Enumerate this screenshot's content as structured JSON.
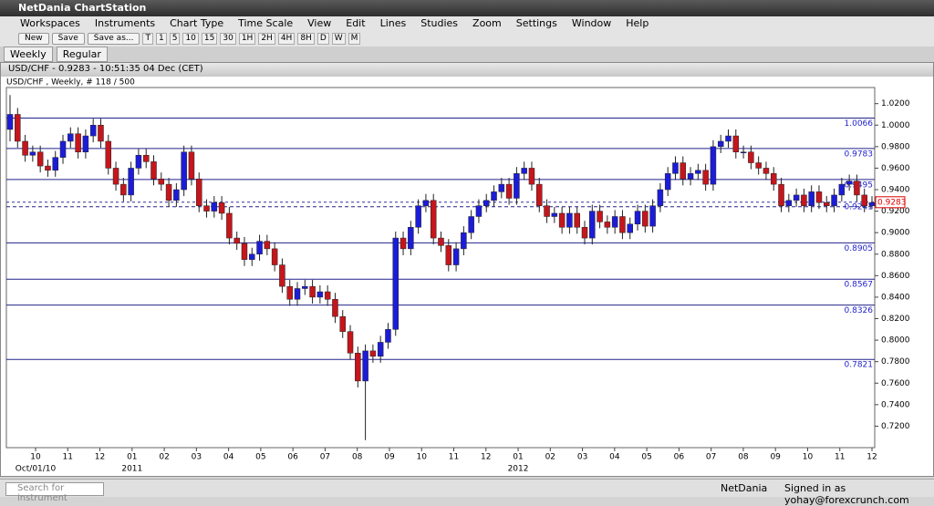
{
  "window": {
    "title": "NetDania ChartStation"
  },
  "menu": [
    "Workspaces",
    "Instruments",
    "Chart Type",
    "Time Scale",
    "View",
    "Edit",
    "Lines",
    "Studies",
    "Zoom",
    "Settings",
    "Window",
    "Help"
  ],
  "toolbar": {
    "buttons": [
      "New",
      "Save",
      "Save as..."
    ],
    "timeframes": [
      "T",
      "1",
      "5",
      "10",
      "15",
      "30",
      "1H",
      "2H",
      "4H",
      "8H",
      "D",
      "W",
      "M"
    ]
  },
  "tabs": [
    "Weekly",
    "Regular"
  ],
  "chart": {
    "type": "candlestick",
    "header": "USD/CHF - 0.9283 - 10:51:35  04 Dec (CET)",
    "label": "USD/CHF , Weekly, # 118 / 500",
    "up_color": "#1c1cd8",
    "down_color": "#c4161c",
    "ylim": [
      0.7,
      1.035
    ],
    "yticks": [
      {
        "value": 1.02,
        "label": "1.0200"
      },
      {
        "value": 1.0,
        "label": "1.0000"
      },
      {
        "value": 0.98,
        "label": "0.9800"
      },
      {
        "value": 0.96,
        "label": "0.9600"
      },
      {
        "value": 0.94,
        "label": "0.9400"
      },
      {
        "value": 0.92,
        "label": "0.9200"
      },
      {
        "value": 0.9,
        "label": "0.9000"
      },
      {
        "value": 0.88,
        "label": "0.8800"
      },
      {
        "value": 0.86,
        "label": "0.8600"
      },
      {
        "value": 0.84,
        "label": "0.8400"
      },
      {
        "value": 0.82,
        "label": "0.8200"
      },
      {
        "value": 0.8,
        "label": "0.8000"
      },
      {
        "value": 0.78,
        "label": "0.7800"
      },
      {
        "value": 0.76,
        "label": "0.7600"
      },
      {
        "value": 0.74,
        "label": "0.7400"
      },
      {
        "value": 0.72,
        "label": "0.7200"
      }
    ],
    "levels": [
      1.0066,
      0.9783,
      0.9495,
      0.8905,
      0.8567,
      0.8326,
      0.7821
    ],
    "dashed_level": 0.9241,
    "last_price": 0.9283,
    "x_labels": [
      "10",
      "11",
      "12",
      "01",
      "02",
      "03",
      "04",
      "05",
      "06",
      "07",
      "08",
      "09",
      "10",
      "11",
      "12",
      "01",
      "02",
      "03",
      "04",
      "05",
      "06",
      "07",
      "08",
      "09",
      "10",
      "11",
      "12"
    ],
    "x_sublabels": [
      "Oct/01/10",
      "2011",
      "2012"
    ],
    "candles": [
      [
        0.996,
        1.028,
        0.985,
        1.01
      ],
      [
        1.01,
        1.016,
        0.979,
        0.985
      ],
      [
        0.985,
        0.991,
        0.966,
        0.972
      ],
      [
        0.972,
        0.981,
        0.966,
        0.975
      ],
      [
        0.975,
        0.981,
        0.956,
        0.962
      ],
      [
        0.962,
        0.968,
        0.952,
        0.958
      ],
      [
        0.958,
        0.976,
        0.952,
        0.97
      ],
      [
        0.97,
        0.991,
        0.964,
        0.985
      ],
      [
        0.985,
        0.998,
        0.979,
        0.992
      ],
      [
        0.992,
        0.998,
        0.969,
        0.975
      ],
      [
        0.975,
        0.996,
        0.969,
        0.99
      ],
      [
        0.99,
        1.006,
        0.984,
        1.0
      ],
      [
        1.0,
        1.006,
        0.979,
        0.985
      ],
      [
        0.985,
        0.991,
        0.954,
        0.96
      ],
      [
        0.96,
        0.966,
        0.939,
        0.945
      ],
      [
        0.945,
        0.951,
        0.929,
        0.935
      ],
      [
        0.935,
        0.966,
        0.929,
        0.96
      ],
      [
        0.96,
        0.978,
        0.954,
        0.972
      ],
      [
        0.972,
        0.978,
        0.96,
        0.966
      ],
      [
        0.966,
        0.972,
        0.944,
        0.95
      ],
      [
        0.95,
        0.956,
        0.939,
        0.945
      ],
      [
        0.945,
        0.951,
        0.924,
        0.93
      ],
      [
        0.93,
        0.946,
        0.924,
        0.94
      ],
      [
        0.94,
        0.981,
        0.934,
        0.975
      ],
      [
        0.975,
        0.981,
        0.944,
        0.95
      ],
      [
        0.95,
        0.956,
        0.919,
        0.925
      ],
      [
        0.925,
        0.931,
        0.914,
        0.92
      ],
      [
        0.92,
        0.934,
        0.914,
        0.928
      ],
      [
        0.928,
        0.934,
        0.912,
        0.918
      ],
      [
        0.918,
        0.924,
        0.889,
        0.895
      ],
      [
        0.895,
        0.901,
        0.884,
        0.89
      ],
      [
        0.89,
        0.896,
        0.869,
        0.875
      ],
      [
        0.875,
        0.886,
        0.869,
        0.88
      ],
      [
        0.88,
        0.898,
        0.874,
        0.892
      ],
      [
        0.892,
        0.898,
        0.879,
        0.885
      ],
      [
        0.885,
        0.891,
        0.864,
        0.87
      ],
      [
        0.87,
        0.876,
        0.844,
        0.85
      ],
      [
        0.85,
        0.856,
        0.832,
        0.838
      ],
      [
        0.838,
        0.854,
        0.832,
        0.848
      ],
      [
        0.848,
        0.856,
        0.842,
        0.85
      ],
      [
        0.85,
        0.856,
        0.834,
        0.84
      ],
      [
        0.84,
        0.851,
        0.834,
        0.845
      ],
      [
        0.845,
        0.851,
        0.832,
        0.838
      ],
      [
        0.838,
        0.844,
        0.816,
        0.822
      ],
      [
        0.822,
        0.828,
        0.802,
        0.808
      ],
      [
        0.808,
        0.814,
        0.782,
        0.788
      ],
      [
        0.788,
        0.794,
        0.756,
        0.762
      ],
      [
        0.762,
        0.796,
        0.707,
        0.79
      ],
      [
        0.79,
        0.796,
        0.779,
        0.785
      ],
      [
        0.785,
        0.804,
        0.779,
        0.798
      ],
      [
        0.798,
        0.816,
        0.792,
        0.81
      ],
      [
        0.81,
        0.901,
        0.804,
        0.895
      ],
      [
        0.895,
        0.901,
        0.879,
        0.885
      ],
      [
        0.885,
        0.911,
        0.879,
        0.905
      ],
      [
        0.905,
        0.931,
        0.899,
        0.925
      ],
      [
        0.925,
        0.936,
        0.919,
        0.93
      ],
      [
        0.93,
        0.936,
        0.889,
        0.895
      ],
      [
        0.895,
        0.901,
        0.882,
        0.888
      ],
      [
        0.888,
        0.894,
        0.864,
        0.87
      ],
      [
        0.87,
        0.891,
        0.864,
        0.885
      ],
      [
        0.885,
        0.906,
        0.879,
        0.9
      ],
      [
        0.9,
        0.921,
        0.894,
        0.915
      ],
      [
        0.915,
        0.931,
        0.909,
        0.925
      ],
      [
        0.925,
        0.936,
        0.919,
        0.93
      ],
      [
        0.93,
        0.944,
        0.924,
        0.938
      ],
      [
        0.938,
        0.951,
        0.932,
        0.945
      ],
      [
        0.945,
        0.951,
        0.926,
        0.932
      ],
      [
        0.932,
        0.961,
        0.926,
        0.955
      ],
      [
        0.955,
        0.966,
        0.949,
        0.96
      ],
      [
        0.96,
        0.966,
        0.939,
        0.945
      ],
      [
        0.945,
        0.951,
        0.919,
        0.925
      ],
      [
        0.925,
        0.931,
        0.909,
        0.915
      ],
      [
        0.915,
        0.924,
        0.909,
        0.918
      ],
      [
        0.918,
        0.924,
        0.899,
        0.905
      ],
      [
        0.905,
        0.924,
        0.899,
        0.918
      ],
      [
        0.918,
        0.924,
        0.899,
        0.905
      ],
      [
        0.905,
        0.911,
        0.889,
        0.895
      ],
      [
        0.895,
        0.926,
        0.889,
        0.92
      ],
      [
        0.92,
        0.926,
        0.904,
        0.91
      ],
      [
        0.91,
        0.916,
        0.899,
        0.905
      ],
      [
        0.905,
        0.921,
        0.899,
        0.915
      ],
      [
        0.915,
        0.921,
        0.894,
        0.9
      ],
      [
        0.9,
        0.914,
        0.894,
        0.908
      ],
      [
        0.908,
        0.926,
        0.902,
        0.92
      ],
      [
        0.92,
        0.926,
        0.9,
        0.906
      ],
      [
        0.906,
        0.931,
        0.9,
        0.925
      ],
      [
        0.925,
        0.946,
        0.919,
        0.94
      ],
      [
        0.94,
        0.961,
        0.934,
        0.955
      ],
      [
        0.955,
        0.971,
        0.949,
        0.965
      ],
      [
        0.965,
        0.971,
        0.944,
        0.95
      ],
      [
        0.95,
        0.961,
        0.944,
        0.955
      ],
      [
        0.955,
        0.964,
        0.949,
        0.958
      ],
      [
        0.958,
        0.964,
        0.939,
        0.945
      ],
      [
        0.945,
        0.986,
        0.939,
        0.98
      ],
      [
        0.98,
        0.991,
        0.974,
        0.985
      ],
      [
        0.985,
        0.996,
        0.979,
        0.99
      ],
      [
        0.99,
        0.996,
        0.969,
        0.975
      ],
      [
        0.975,
        0.981,
        0.969,
        0.975
      ],
      [
        0.975,
        0.981,
        0.959,
        0.965
      ],
      [
        0.965,
        0.971,
        0.954,
        0.96
      ],
      [
        0.96,
        0.966,
        0.949,
        0.955
      ],
      [
        0.955,
        0.961,
        0.939,
        0.945
      ],
      [
        0.945,
        0.951,
        0.919,
        0.925
      ],
      [
        0.925,
        0.936,
        0.919,
        0.93
      ],
      [
        0.93,
        0.941,
        0.924,
        0.935
      ],
      [
        0.935,
        0.941,
        0.919,
        0.925
      ],
      [
        0.925,
        0.944,
        0.919,
        0.938
      ],
      [
        0.938,
        0.944,
        0.922,
        0.928
      ],
      [
        0.928,
        0.934,
        0.919,
        0.925
      ],
      [
        0.925,
        0.941,
        0.919,
        0.935
      ],
      [
        0.935,
        0.951,
        0.929,
        0.945
      ],
      [
        0.945,
        0.954,
        0.939,
        0.948
      ],
      [
        0.948,
        0.954,
        0.929,
        0.935
      ],
      [
        0.935,
        0.941,
        0.919,
        0.925
      ],
      [
        0.925,
        0.934,
        0.922,
        0.928
      ]
    ]
  },
  "status": {
    "search_placeholder": "Search for instrument",
    "brand": "NetDania",
    "signed_in": "Signed in as yohay@forexcrunch.com"
  }
}
